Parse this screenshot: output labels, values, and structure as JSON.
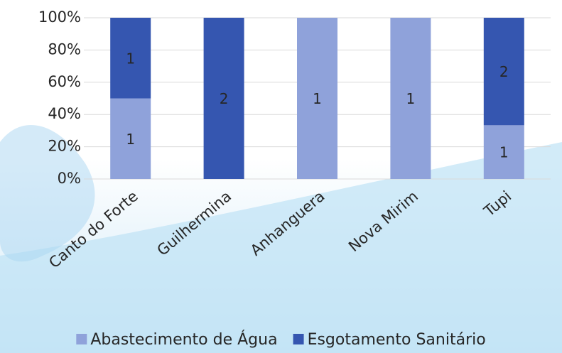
{
  "chart_data": {
    "type": "bar",
    "stacked": "percent",
    "categories": [
      "Canto do Forte",
      "Guilhermina",
      "Anhanguera",
      "Nova Mirim",
      "Tupi"
    ],
    "series": [
      {
        "name": "Abastecimento de Água",
        "color": "#8fa2da",
        "values": [
          1,
          0,
          1,
          1,
          1
        ]
      },
      {
        "name": "Esgotamento Sanitário",
        "color": "#3556b0",
        "values": [
          1,
          2,
          0,
          0,
          2
        ]
      }
    ],
    "ylim": [
      0,
      100
    ],
    "yticks": [
      {
        "value": 0,
        "label": "0%"
      },
      {
        "value": 20,
        "label": "20%"
      },
      {
        "value": 40,
        "label": "40%"
      },
      {
        "value": 60,
        "label": "60%"
      },
      {
        "value": 80,
        "label": "80%"
      },
      {
        "value": 100,
        "label": "100%"
      }
    ],
    "grid": true,
    "legend": "bottom"
  }
}
